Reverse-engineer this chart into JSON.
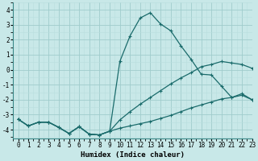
{
  "xlabel": "Humidex (Indice chaleur)",
  "xlim": [
    -0.5,
    23
  ],
  "ylim": [
    -4.6,
    4.5
  ],
  "yticks": [
    -4,
    -3,
    -2,
    -1,
    0,
    1,
    2,
    3,
    4
  ],
  "xticks": [
    0,
    1,
    2,
    3,
    4,
    5,
    6,
    7,
    8,
    9,
    10,
    11,
    12,
    13,
    14,
    15,
    16,
    17,
    18,
    19,
    20,
    21,
    22,
    23
  ],
  "bg_color": "#c8e8e8",
  "grid_major_color": "#a0cccc",
  "grid_minor_color": "#b8dede",
  "line_color": "#1a6b6b",
  "curve1_x": [
    0,
    1,
    2,
    3,
    4,
    5,
    6,
    7,
    8,
    9,
    10,
    11,
    12,
    13,
    14,
    15,
    16,
    17,
    18,
    19,
    20,
    21,
    22,
    23
  ],
  "curve1_y": [
    -3.3,
    -3.75,
    -3.5,
    -3.5,
    -3.85,
    -4.25,
    -3.8,
    -4.3,
    -4.35,
    -4.1,
    -3.9,
    -3.75,
    -3.6,
    -3.45,
    -3.25,
    -3.05,
    -2.8,
    -2.55,
    -2.35,
    -2.15,
    -1.95,
    -1.85,
    -1.7,
    -2.0
  ],
  "curve2_x": [
    0,
    1,
    2,
    3,
    4,
    5,
    6,
    7,
    8,
    9,
    10,
    11,
    12,
    13,
    14,
    15,
    16,
    17,
    18,
    19,
    20,
    21,
    22,
    23
  ],
  "curve2_y": [
    -3.3,
    -3.75,
    -3.5,
    -3.5,
    -3.85,
    -4.25,
    -3.8,
    -4.3,
    -4.35,
    -4.1,
    -3.35,
    -2.8,
    -2.3,
    -1.85,
    -1.4,
    -0.95,
    -0.55,
    -0.2,
    0.2,
    0.35,
    0.55,
    0.45,
    0.35,
    0.1
  ],
  "curve3_x": [
    0,
    1,
    2,
    3,
    4,
    5,
    6,
    7,
    8,
    9,
    10,
    11,
    12,
    13,
    14,
    15,
    16,
    17,
    18,
    19,
    20,
    21,
    22,
    23
  ],
  "curve3_y": [
    -3.3,
    -3.75,
    -3.5,
    -3.5,
    -3.85,
    -4.25,
    -3.8,
    -4.3,
    -4.35,
    -4.1,
    0.55,
    2.25,
    3.45,
    3.8,
    3.05,
    2.6,
    1.6,
    0.7,
    -0.3,
    -0.35,
    -1.1,
    -1.85,
    -1.6,
    -2.0
  ]
}
